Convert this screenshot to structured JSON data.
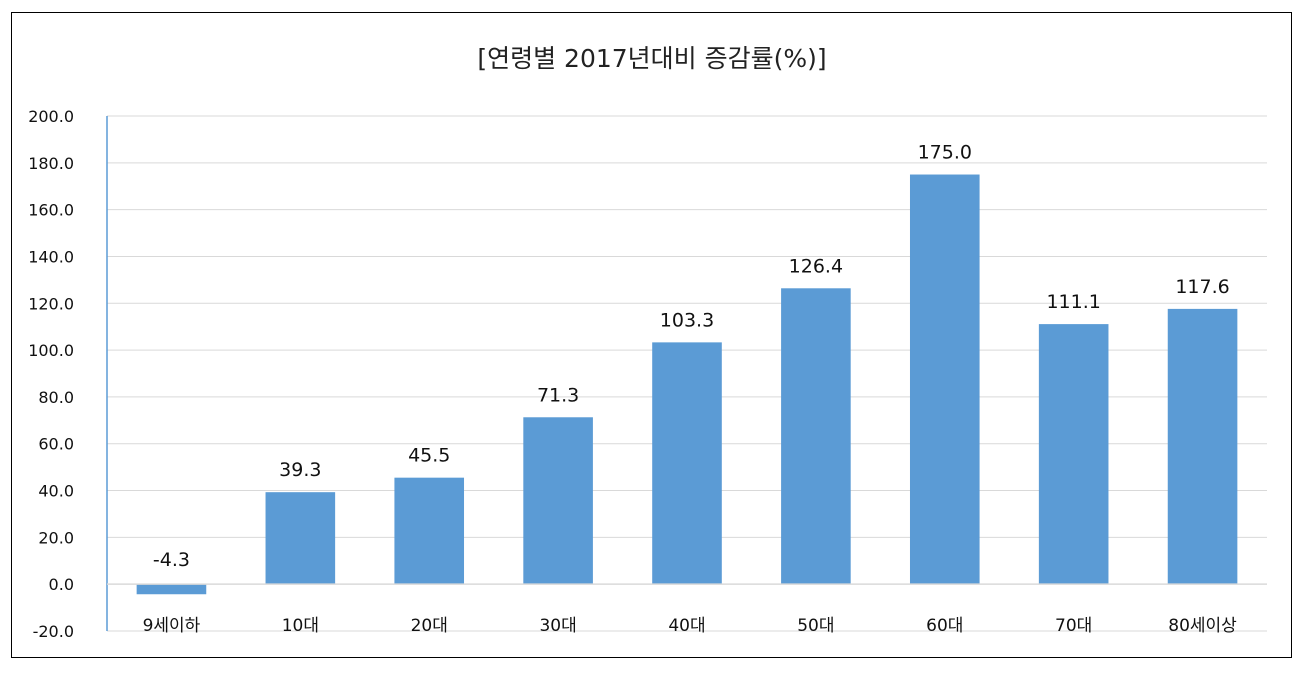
{
  "chart_data": {
    "type": "bar",
    "title": "[연령별 2017년대비 증감률(%)]",
    "categories": [
      "9세이하",
      "10대",
      "20대",
      "30대",
      "40대",
      "50대",
      "60대",
      "70대",
      "80세이상"
    ],
    "values": [
      -4.3,
      39.3,
      45.5,
      71.3,
      103.3,
      126.4,
      175.0,
      111.1,
      117.6
    ],
    "value_labels": [
      "-4.3",
      "39.3",
      "45.5",
      "71.3",
      "103.3",
      "126.4",
      "175.0",
      "111.1",
      "117.6"
    ],
    "ylim": [
      -20,
      200
    ],
    "yticks": [
      -20,
      0,
      20,
      40,
      60,
      80,
      100,
      120,
      140,
      160,
      180,
      200
    ],
    "ytick_labels": [
      "-20.0",
      "0.0",
      "20.0",
      "40.0",
      "60.0",
      "80.0",
      "100.0",
      "120.0",
      "140.0",
      "160.0",
      "180.0",
      "200.0"
    ],
    "xlabel": "",
    "ylabel": "",
    "grid": true,
    "legend": "none",
    "colors": {
      "bar": "#5B9BD5",
      "negative_label": "#FF0000",
      "label": "#111111",
      "gridline": "#D9D9D9",
      "axis": "#5B9BD5"
    }
  }
}
